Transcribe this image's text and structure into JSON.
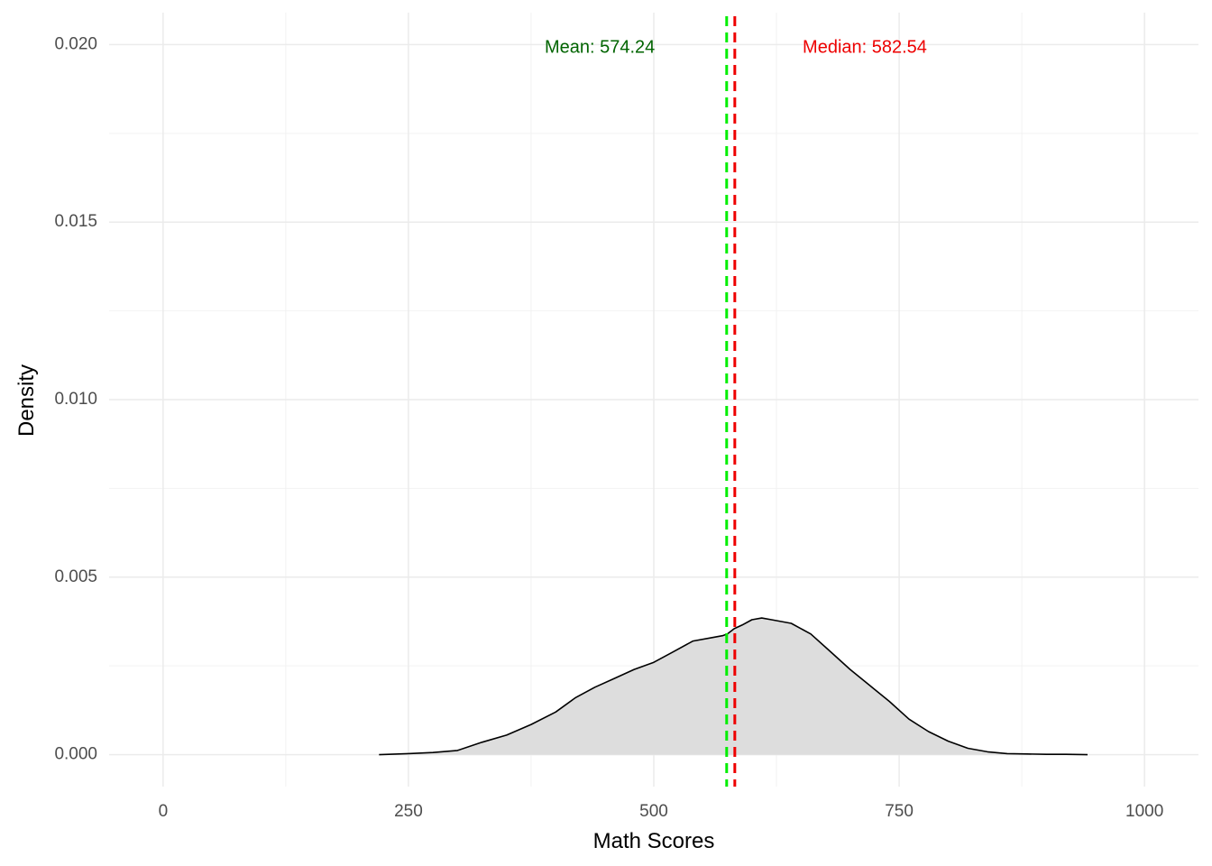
{
  "chart_data": {
    "type": "area",
    "title": "",
    "xlabel": "Math Scores",
    "ylabel": "Density",
    "xlim": [
      -55,
      1055
    ],
    "ylim": [
      -0.0009,
      0.0209
    ],
    "x_ticks": [
      0,
      250,
      500,
      750,
      1000
    ],
    "x_tick_labels": [
      "0",
      "250",
      "500",
      "750",
      "1000"
    ],
    "y_ticks": [
      0,
      0.005,
      0.01,
      0.015,
      0.02
    ],
    "y_tick_labels": [
      "0.000",
      "0.005",
      "0.010",
      "0.015",
      "0.020"
    ],
    "grid": true,
    "density": {
      "fill": "#dddddd",
      "stroke": "#000000",
      "x": [
        220,
        250,
        275,
        300,
        325,
        350,
        375,
        400,
        420,
        440,
        460,
        480,
        500,
        520,
        540,
        560,
        570,
        575,
        582,
        590,
        600,
        610,
        620,
        640,
        660,
        680,
        700,
        720,
        740,
        760,
        780,
        800,
        820,
        840,
        860,
        880,
        900,
        920,
        942
      ],
      "y": [
        0,
        3e-05,
        6e-05,
        0.00012,
        0.00035,
        0.00055,
        0.00085,
        0.0012,
        0.0016,
        0.0019,
        0.00215,
        0.0024,
        0.0026,
        0.0029,
        0.0032,
        0.0033,
        0.00335,
        0.0034,
        0.00355,
        0.00365,
        0.0038,
        0.00385,
        0.0038,
        0.0037,
        0.0034,
        0.0029,
        0.0024,
        0.00195,
        0.0015,
        0.001,
        0.00065,
        0.00038,
        0.00018,
        8e-05,
        3e-05,
        2e-05,
        1e-05,
        1e-05,
        0
      ]
    },
    "reference_lines": [
      {
        "name": "Mean",
        "value": 574.24,
        "color": "#00ee00",
        "label": "Mean: 574.24",
        "label_color": "#006400",
        "label_x": 445,
        "label_y": 0.0199
      },
      {
        "name": "Median",
        "value": 582.54,
        "color": "#ee0000",
        "label": "Median: 582.54",
        "label_color": "#ee0000",
        "label_x": 715,
        "label_y": 0.0199
      }
    ]
  }
}
